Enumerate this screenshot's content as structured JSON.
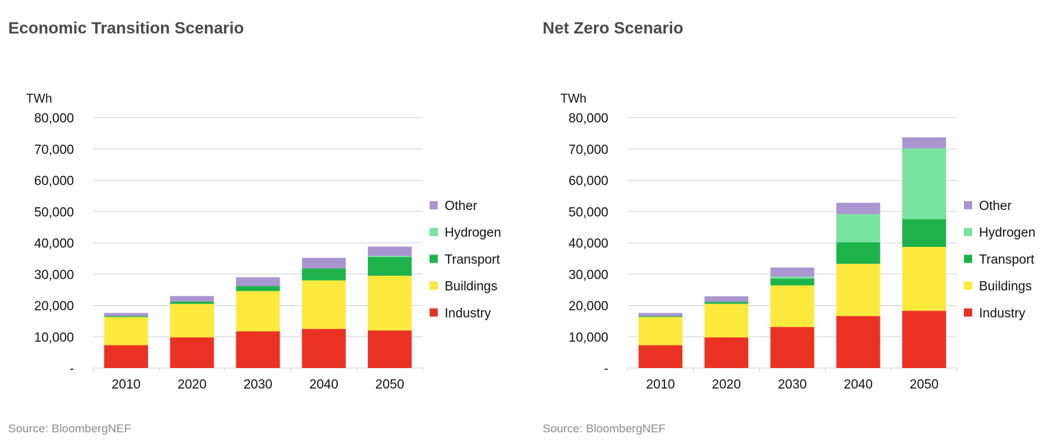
{
  "chart_data": [
    {
      "type": "bar",
      "stacked": true,
      "title": "Economic Transition Scenario",
      "ylabel": "TWh",
      "categories": [
        "2010",
        "2020",
        "2030",
        "2040",
        "2050"
      ],
      "ylim": [
        0,
        80000
      ],
      "yticks": [
        "-",
        "10,000",
        "20,000",
        "30,000",
        "40,000",
        "50,000",
        "60,000",
        "70,000",
        "80,000"
      ],
      "grid": true,
      "legend": "right",
      "series": [
        {
          "name": "Industry",
          "color": "#ea3223",
          "values": [
            7300,
            9800,
            11700,
            12500,
            12000
          ]
        },
        {
          "name": "Buildings",
          "color": "#fde93c",
          "values": [
            9000,
            10700,
            12900,
            15500,
            17500
          ]
        },
        {
          "name": "Transport",
          "color": "#1db34a",
          "values": [
            300,
            700,
            1600,
            3800,
            6000
          ]
        },
        {
          "name": "Hydrogen",
          "color": "#78e3a0",
          "values": [
            0,
            0,
            0,
            0,
            300
          ]
        },
        {
          "name": "Other",
          "color": "#a995cf",
          "values": [
            1000,
            1800,
            2800,
            3400,
            3000
          ]
        }
      ],
      "source": "Source: BloombergNEF"
    },
    {
      "type": "bar",
      "stacked": true,
      "title": "Net Zero Scenario",
      "ylabel": "TWh",
      "categories": [
        "2010",
        "2020",
        "2030",
        "2040",
        "2050"
      ],
      "ylim": [
        0,
        80000
      ],
      "yticks": [
        "-",
        "10,000",
        "20,000",
        "30,000",
        "40,000",
        "50,000",
        "60,000",
        "70,000",
        "80,000"
      ],
      "grid": true,
      "legend": "right",
      "series": [
        {
          "name": "Industry",
          "color": "#ea3223",
          "values": [
            7300,
            9800,
            13100,
            16600,
            18300
          ]
        },
        {
          "name": "Buildings",
          "color": "#fde93c",
          "values": [
            9000,
            10700,
            13300,
            16700,
            20400
          ]
        },
        {
          "name": "Transport",
          "color": "#1db34a",
          "values": [
            300,
            600,
            2200,
            6900,
            8900
          ]
        },
        {
          "name": "Hydrogen",
          "color": "#78e3a0",
          "values": [
            0,
            0,
            600,
            9000,
            22600
          ]
        },
        {
          "name": "Other",
          "color": "#a995cf",
          "values": [
            1000,
            1800,
            2900,
            3600,
            3500
          ]
        }
      ],
      "source": "Source: BloombergNEF"
    }
  ]
}
